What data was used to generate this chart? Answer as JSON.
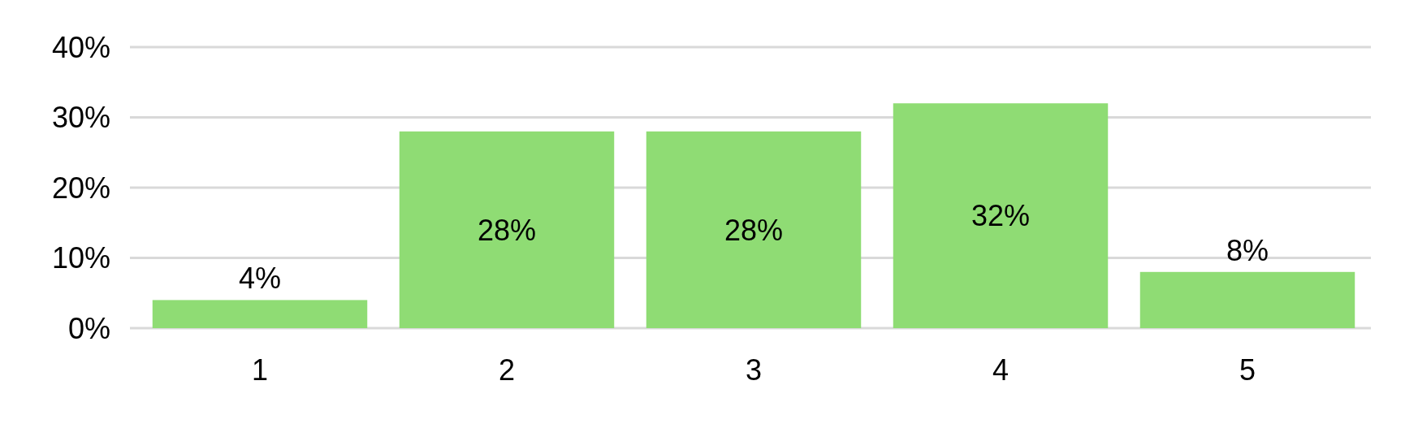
{
  "chart_data": {
    "type": "bar",
    "categories": [
      "1",
      "2",
      "3",
      "4",
      "5"
    ],
    "values": [
      4,
      28,
      28,
      32,
      8
    ],
    "value_labels": [
      "4%",
      "28%",
      "28%",
      "32%",
      "8%"
    ],
    "color": "#8fdc74",
    "ylim": [
      0,
      40
    ],
    "yticks": [
      {
        "value": 0,
        "label": "0%"
      },
      {
        "value": 10,
        "label": "10%"
      },
      {
        "value": 20,
        "label": "20%"
      },
      {
        "value": 30,
        "label": "30%"
      },
      {
        "value": 40,
        "label": "40%"
      }
    ],
    "grid": "y"
  }
}
